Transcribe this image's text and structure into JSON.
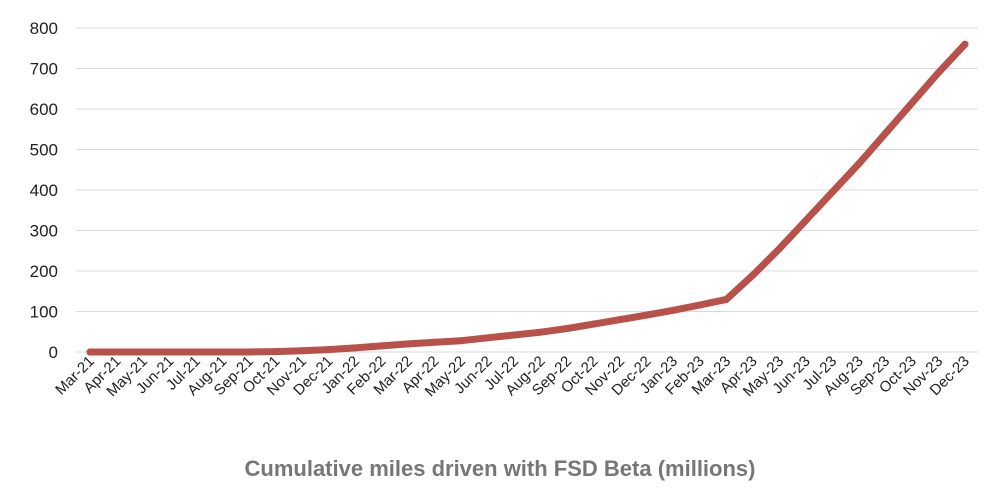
{
  "chart_data": {
    "type": "line",
    "title": "Cumulative miles driven with FSD Beta (millions)",
    "xlabel": "",
    "ylabel": "",
    "ylim": [
      0,
      800
    ],
    "yticks": [
      0,
      100,
      200,
      300,
      400,
      500,
      600,
      700,
      800
    ],
    "grid": true,
    "legend": "none",
    "line_color": "#b9514b",
    "categories": [
      "Mar-21",
      "Apr-21",
      "May-21",
      "Jun-21",
      "Jul-21",
      "Aug-21",
      "Sep-21",
      "Oct-21",
      "Nov-21",
      "Dec-21",
      "Jan-22",
      "Feb-22",
      "Mar-22",
      "Apr-22",
      "May-22",
      "Jun-22",
      "Jul-22",
      "Aug-22",
      "Sep-22",
      "Oct-22",
      "Nov-22",
      "Dec-22",
      "Jan-23",
      "Feb-23",
      "Mar-23",
      "Apr-23",
      "May-23",
      "Jun-23",
      "Jul-23",
      "Aug-23",
      "Sep-23",
      "Oct-23",
      "Nov-23",
      "Dec-23"
    ],
    "series": [
      {
        "values": [
          0,
          0,
          0,
          0,
          0,
          0,
          0,
          1,
          3,
          6,
          10,
          15,
          20,
          24,
          28,
          35,
          42,
          49,
          58,
          69,
          80,
          91,
          103,
          116,
          130,
          190,
          255,
          325,
          395,
          465,
          540,
          615,
          690,
          760
        ]
      }
    ]
  }
}
